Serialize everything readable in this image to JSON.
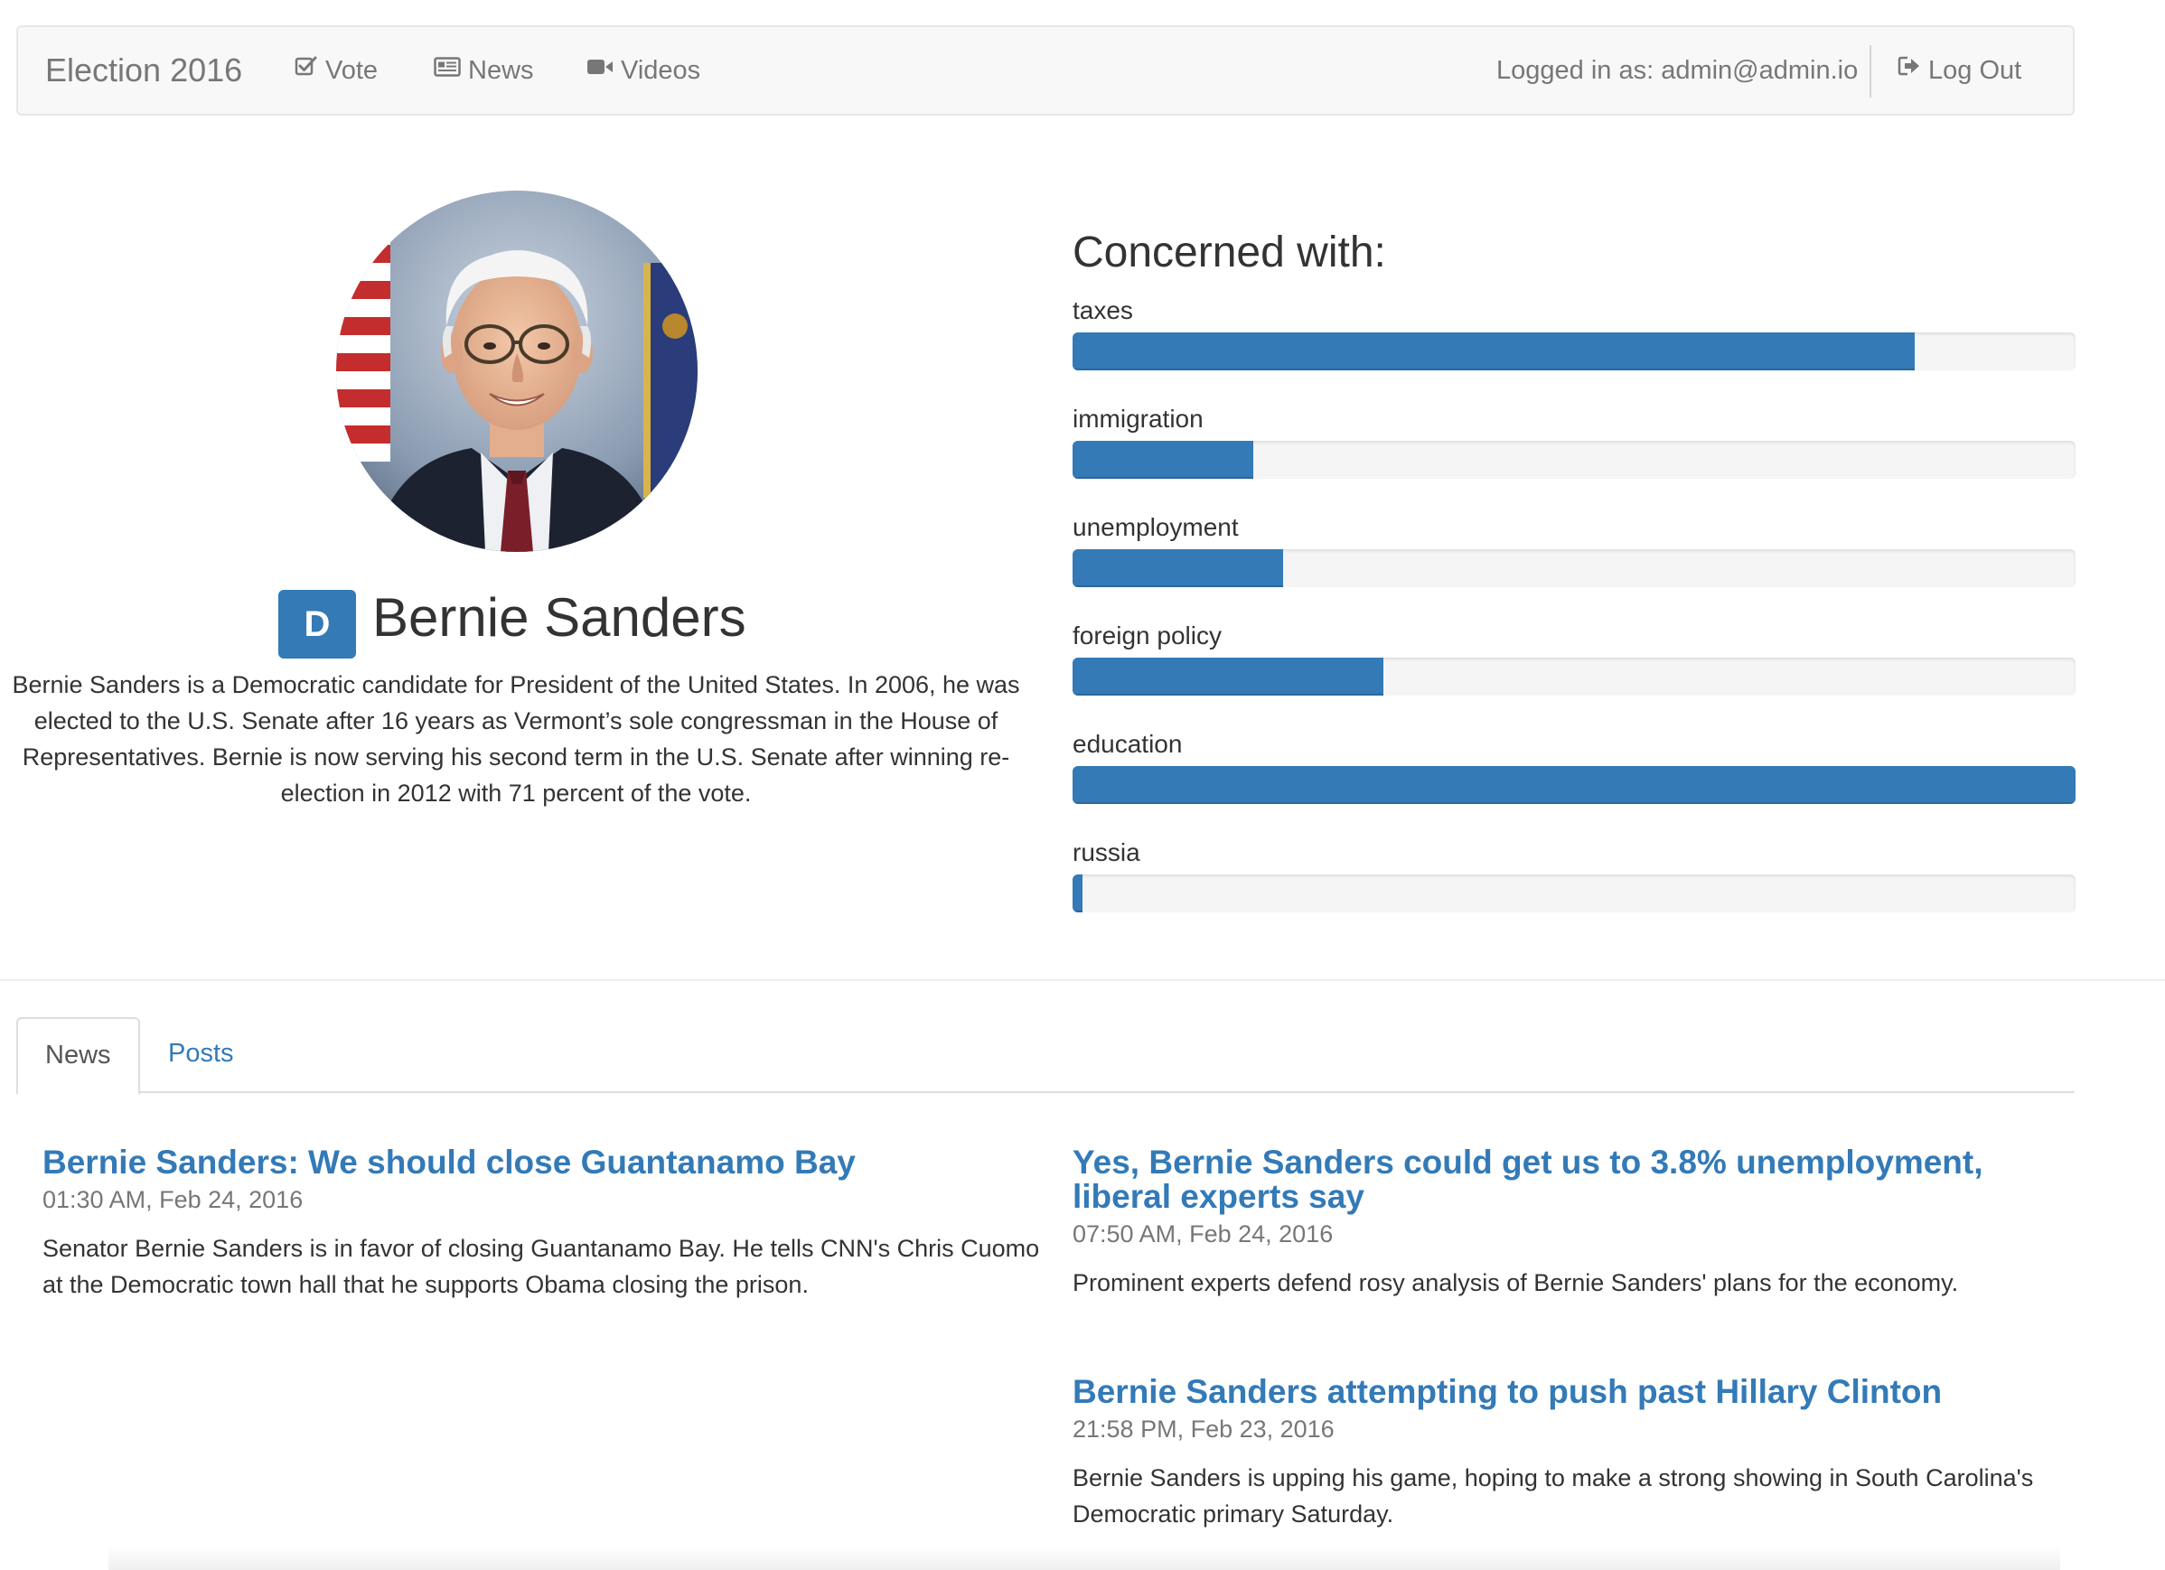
{
  "navbar": {
    "brand": "Election 2016",
    "links": [
      {
        "label": "Vote",
        "icon": "checkbox-icon"
      },
      {
        "label": "News",
        "icon": "newspaper-icon"
      },
      {
        "label": "Videos",
        "icon": "video-camera-icon"
      }
    ],
    "user_text": "Logged in as: admin@admin.io",
    "logout_label": "Log Out",
    "logout_icon": "sign-out-icon"
  },
  "candidate": {
    "party": "D",
    "party_color": "#337ab7",
    "name": "Bernie Sanders",
    "bio": "Bernie Sanders is a Democratic candidate for President of the United States. In 2006, he was elected to the U.S. Senate after 16 years as Vermont’s sole congressman in the House of Representatives. Bernie is now serving his second term in the U.S. Senate after winning re-election in 2012 with 71 percent of the vote."
  },
  "concerns": {
    "title": "Concerned with:",
    "bar_color": "#337ab7",
    "items": [
      {
        "label": "taxes",
        "percent": 84
      },
      {
        "label": "immigration",
        "percent": 18
      },
      {
        "label": "unemployment",
        "percent": 21
      },
      {
        "label": "foreign policy",
        "percent": 31
      },
      {
        "label": "education",
        "percent": 100
      },
      {
        "label": "russia",
        "percent": 1
      }
    ]
  },
  "tabs": [
    {
      "label": "News",
      "active": true
    },
    {
      "label": "Posts",
      "active": false
    }
  ],
  "news": [
    {
      "title": "Bernie Sanders: We should close Guantanamo Bay",
      "time": "01:30 AM, Feb 24, 2016",
      "summary": "Senator Bernie Sanders is in favor of closing Guantanamo Bay. He tells CNN's Chris Cuomo at the Democratic town hall that he supports Obama closing the prison."
    },
    {
      "title": "Yes, Bernie Sanders could get us to 3.8% unemployment, liberal experts say",
      "time": "07:50 AM, Feb 24, 2016",
      "summary": "Prominent experts defend rosy analysis of Bernie Sanders' plans for the economy."
    },
    {
      "title": "Bernie Sanders attempting to push past Hillary Clinton",
      "time": "21:58 PM, Feb 23, 2016",
      "summary": "Bernie Sanders is upping his game, hoping to make a strong showing in South Carolina's Democratic primary Saturday."
    }
  ]
}
